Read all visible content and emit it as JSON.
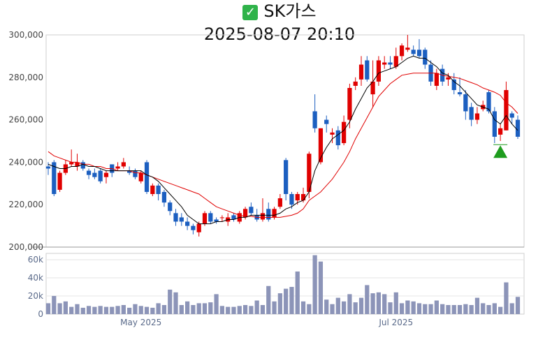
{
  "header": {
    "check_icon": "checkmark-icon",
    "name": "SK가스",
    "datetime": "2025-08-07 20:10"
  },
  "colors": {
    "up": "#e00000",
    "down": "#1c5fc0",
    "ma_short": "#000000",
    "ma_long": "#e00000",
    "volume": "#8c94b8",
    "signal": "#1e9c1e"
  },
  "chart_data": {
    "type": "candlestick",
    "price_axis": {
      "min": 200000,
      "max": 300000,
      "ticks": [
        200000,
        220000,
        240000,
        260000,
        280000,
        300000
      ],
      "tick_labels": [
        "200,000",
        "220,000",
        "240,000",
        "260,000",
        "280,000",
        "300,000"
      ]
    },
    "volume_axis": {
      "min": 0,
      "max": 67000,
      "ticks": [
        0,
        20000,
        40000,
        60000
      ],
      "tick_labels": [
        "0",
        "20k",
        "40k",
        "60k"
      ]
    },
    "x_labels": [
      {
        "index": 16,
        "label": "May 2025"
      },
      {
        "index": 60,
        "label": "Jul 2025"
      }
    ],
    "candles": [
      [
        238000,
        240000,
        234000,
        237000
      ],
      [
        240000,
        241000,
        224000,
        225000
      ],
      [
        227000,
        236000,
        226000,
        235000
      ],
      [
        235000,
        241000,
        234000,
        239000
      ],
      [
        239000,
        246000,
        238000,
        240000
      ],
      [
        238000,
        244000,
        236000,
        240000
      ],
      [
        240000,
        241000,
        236000,
        237000
      ],
      [
        236000,
        237000,
        232000,
        234000
      ],
      [
        235000,
        237000,
        232000,
        233000
      ],
      [
        236000,
        237000,
        230000,
        231000
      ],
      [
        233000,
        236000,
        230000,
        235000
      ],
      [
        239000,
        239000,
        233000,
        235000
      ],
      [
        237000,
        240000,
        236000,
        238000
      ],
      [
        238000,
        242000,
        237000,
        240000
      ],
      [
        236000,
        238000,
        234000,
        235000
      ],
      [
        236000,
        237000,
        232000,
        233000
      ],
      [
        231000,
        236000,
        230000,
        235000
      ],
      [
        240000,
        241000,
        225000,
        226000
      ],
      [
        225000,
        230000,
        224000,
        229000
      ],
      [
        229000,
        230000,
        222000,
        225000
      ],
      [
        226000,
        227000,
        219000,
        221000
      ],
      [
        221000,
        222000,
        215000,
        217000
      ],
      [
        216000,
        218000,
        210000,
        212000
      ],
      [
        214000,
        216000,
        210000,
        212000
      ],
      [
        212000,
        214000,
        208000,
        210000
      ],
      [
        210000,
        211000,
        206000,
        208000
      ],
      [
        207000,
        212000,
        205000,
        211000
      ],
      [
        211000,
        217000,
        210000,
        216000
      ],
      [
        216000,
        217000,
        211000,
        212000
      ],
      [
        213000,
        214000,
        211000,
        212000
      ],
      [
        214000,
        215000,
        212000,
        214000
      ],
      [
        212000,
        216000,
        210000,
        214000
      ],
      [
        215000,
        216000,
        212000,
        213000
      ],
      [
        212000,
        217000,
        211000,
        216000
      ],
      [
        214000,
        219000,
        213000,
        218000
      ],
      [
        219000,
        221000,
        215000,
        216000
      ],
      [
        215000,
        218000,
        212000,
        213000
      ],
      [
        213000,
        223000,
        212000,
        216000
      ],
      [
        218000,
        221000,
        212000,
        213000
      ],
      [
        214000,
        219000,
        213000,
        218000
      ],
      [
        219000,
        225000,
        218000,
        223000
      ],
      [
        241000,
        242000,
        222000,
        225000
      ],
      [
        225000,
        226000,
        218000,
        220000
      ],
      [
        222000,
        226000,
        220000,
        225000
      ],
      [
        222000,
        228000,
        221000,
        225000
      ],
      [
        226000,
        245000,
        223000,
        244000
      ],
      [
        264000,
        272000,
        254000,
        256000
      ],
      [
        240000,
        256000,
        239000,
        256000
      ],
      [
        260000,
        262000,
        254000,
        258000
      ],
      [
        253000,
        256000,
        249000,
        254000
      ],
      [
        255000,
        257000,
        246000,
        248000
      ],
      [
        249000,
        262000,
        248000,
        259000
      ],
      [
        260000,
        277000,
        256000,
        275000
      ],
      [
        276000,
        280000,
        274000,
        278000
      ],
      [
        279000,
        290000,
        276000,
        286000
      ],
      [
        288000,
        290000,
        278000,
        279000
      ],
      [
        272000,
        288000,
        266000,
        278000
      ],
      [
        278000,
        290000,
        276000,
        288000
      ],
      [
        286000,
        290000,
        284000,
        287000
      ],
      [
        287000,
        290000,
        284000,
        286000
      ],
      [
        285000,
        294000,
        284000,
        290000
      ],
      [
        290000,
        296000,
        288000,
        295000
      ],
      [
        293000,
        300000,
        292000,
        294000
      ],
      [
        293000,
        295000,
        290000,
        291000
      ],
      [
        293000,
        298000,
        289000,
        290000
      ],
      [
        293000,
        294000,
        284000,
        286000
      ],
      [
        286000,
        288000,
        276000,
        278000
      ],
      [
        276000,
        284000,
        274000,
        282000
      ],
      [
        284000,
        286000,
        276000,
        278000
      ],
      [
        279000,
        282000,
        276000,
        280000
      ],
      [
        279000,
        282000,
        272000,
        274000
      ],
      [
        273000,
        280000,
        271000,
        272000
      ],
      [
        272000,
        274000,
        260000,
        264000
      ],
      [
        266000,
        268000,
        257000,
        260000
      ],
      [
        260000,
        266000,
        258000,
        263000
      ],
      [
        265000,
        269000,
        264000,
        267000
      ],
      [
        273000,
        274000,
        263000,
        264000
      ],
      [
        264000,
        266000,
        249000,
        252000
      ],
      [
        253000,
        258000,
        250000,
        256000
      ],
      [
        255000,
        278000,
        255000,
        274000
      ],
      [
        263000,
        264000,
        258000,
        261000
      ],
      [
        260000,
        262000,
        251000,
        252000
      ]
    ],
    "ma_short": [
      239000,
      238000,
      237000,
      237000,
      238000,
      238000,
      239000,
      238000,
      238000,
      237000,
      236000,
      236000,
      236000,
      236000,
      236000,
      236000,
      236000,
      234000,
      233000,
      231000,
      228000,
      225000,
      222000,
      219000,
      215000,
      213000,
      211000,
      211000,
      211000,
      212000,
      212000,
      213000,
      213000,
      214000,
      214000,
      215000,
      215000,
      215000,
      215000,
      215000,
      216000,
      218000,
      219000,
      221000,
      222000,
      226000,
      236000,
      242000,
      247000,
      251000,
      253000,
      255000,
      259000,
      265000,
      270000,
      275000,
      278000,
      282000,
      283000,
      284000,
      285000,
      287000,
      289000,
      290000,
      289000,
      289000,
      287000,
      285000,
      282000,
      281000,
      278000,
      276000,
      273000,
      270000,
      267000,
      266000,
      265000,
      260000,
      258000,
      262000,
      258000,
      255000
    ],
    "ma_long": [
      245000,
      243000,
      242000,
      241000,
      240000,
      240000,
      239000,
      239000,
      238000,
      238000,
      237000,
      237000,
      236000,
      236000,
      236000,
      235000,
      235000,
      234000,
      233000,
      232000,
      231000,
      230000,
      229000,
      228000,
      227000,
      226000,
      225000,
      223000,
      221000,
      219000,
      218000,
      217000,
      216000,
      215000,
      214500,
      214500,
      214000,
      214000,
      214000,
      214000,
      214000,
      214500,
      215000,
      216000,
      218000,
      222000,
      224000,
      226000,
      229000,
      232000,
      236000,
      240000,
      245000,
      251000,
      256000,
      261000,
      266000,
      271000,
      274000,
      277000,
      279000,
      281000,
      281500,
      282000,
      282000,
      282000,
      282000,
      282000,
      281000,
      280500,
      280000,
      279500,
      278500,
      277500,
      276500,
      275000,
      274000,
      273000,
      271500,
      268000,
      266000,
      263000
    ],
    "volume": [
      12000,
      20000,
      12000,
      14000,
      8000,
      11000,
      7000,
      9000,
      8000,
      9000,
      8000,
      8000,
      9000,
      10000,
      7000,
      11000,
      9000,
      8000,
      7000,
      12000,
      10000,
      27000,
      24000,
      10000,
      14000,
      10000,
      12000,
      12000,
      13000,
      22000,
      9000,
      8000,
      8000,
      9000,
      10000,
      9000,
      15000,
      10000,
      31000,
      14000,
      23000,
      28000,
      30000,
      47000,
      14000,
      11000,
      65000,
      58000,
      16000,
      11000,
      18000,
      14000,
      22000,
      13000,
      18000,
      32000,
      23000,
      24000,
      22000,
      13000,
      24000,
      12000,
      15000,
      14000,
      12000,
      11000,
      11000,
      15000,
      11000,
      10000,
      10000,
      10000,
      11000,
      10000,
      18000,
      12000,
      10000,
      12000,
      8000,
      35000,
      12000,
      19000
    ],
    "signal": {
      "type": "buy-arrow",
      "index": 78,
      "price": 245000
    }
  }
}
